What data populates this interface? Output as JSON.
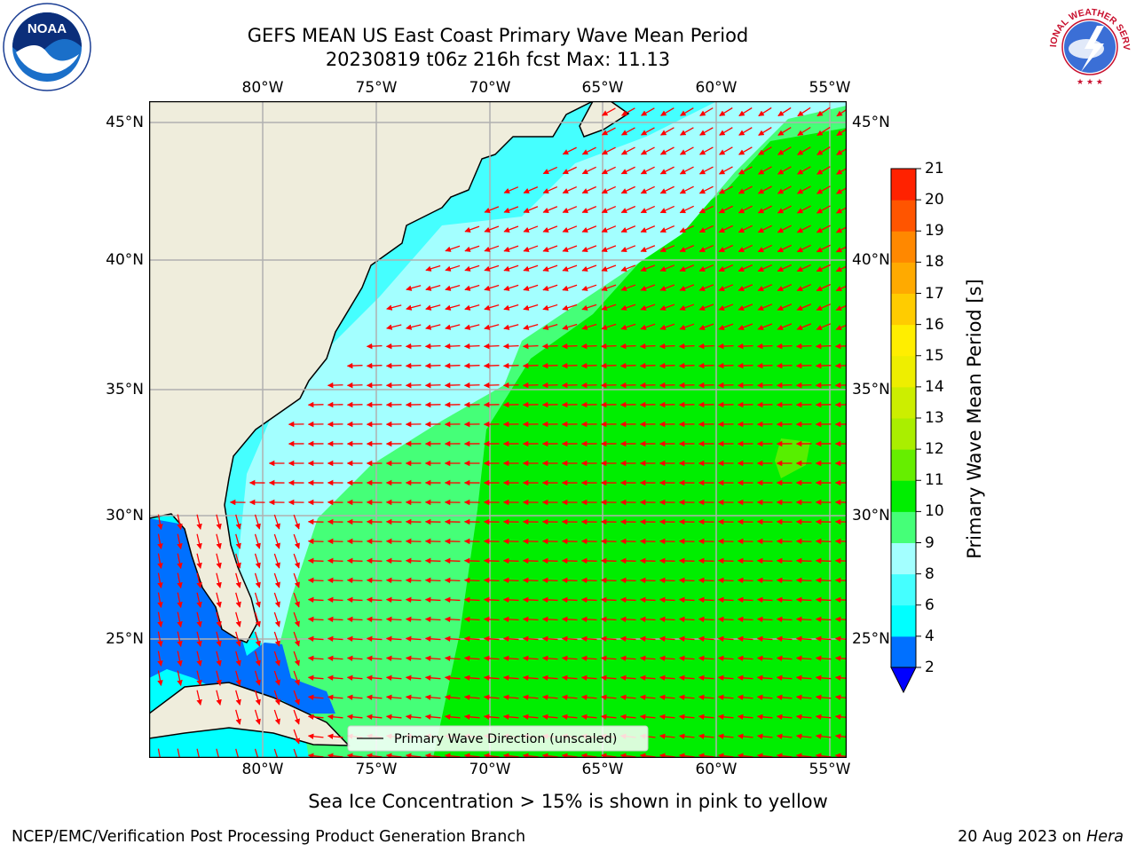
{
  "figure": {
    "title_line1": "GEFS MEAN US East Coast Primary Wave Mean Period",
    "title_line2": "20230819 t06z 216h fcst   Max: 11.13",
    "footnote": "Sea Ice Concentration > 15% is shown in pink to yellow",
    "footer_left": "NCEP/EMC/Verification Post Processing Product Generation Branch",
    "footer_date": "20 Aug 2023 on ",
    "footer_machine": "Hera",
    "noaa_logo_text": "NOAA",
    "nws_logo_text": "NATIONAL WEATHER SERVICE"
  },
  "map": {
    "projection": "Mercator",
    "lon_range": [
      -85,
      -54.2
    ],
    "lat_range": [
      20.5,
      46
    ],
    "lon_ticks": [
      -80,
      -75,
      -70,
      -65,
      -60,
      -55
    ],
    "lon_tick_labels": [
      "80°W",
      "75°W",
      "70°W",
      "65°W",
      "60°W",
      "55°W"
    ],
    "lat_ticks": [
      25,
      30,
      35,
      40,
      45
    ],
    "lat_tick_labels": [
      "25°N",
      "30°N",
      "35°N",
      "40°N",
      "45°N"
    ],
    "gridlines": true,
    "land_color": "#efeddc",
    "coastline_color": "#000000",
    "arrow_color": "#ff0000",
    "legend": {
      "label": "Primary Wave Direction (unscaled)",
      "position": "bottom-center"
    },
    "field_regions": [
      {
        "region": "Gulf of Mexico",
        "period_class": "4-6 s"
      },
      {
        "region": "Coastal shelf Florida to Nova Scotia",
        "period_class": "6-9 s"
      },
      {
        "region": "Sargasso Sea / central North Atlantic",
        "period_class": "9-10 s"
      },
      {
        "region": "Open Atlantic south-east of 38°N",
        "period_class": "10-11 s"
      },
      {
        "region": "Small patch near 32°N 57°W",
        "period_class": "11-12 s"
      }
    ]
  },
  "colorbar": {
    "label": "Primary Wave Mean Period [s]",
    "levels": [
      2,
      4,
      6,
      8,
      9,
      10,
      11,
      12,
      13,
      14,
      15,
      16,
      17,
      18,
      19,
      20,
      21
    ],
    "tick_labels": [
      "2",
      "4",
      "6",
      "8",
      "9",
      "10",
      "11",
      "12",
      "13",
      "14",
      "15",
      "16",
      "17",
      "18",
      "19",
      "20",
      "21"
    ],
    "colors": [
      "#0070ff",
      "#00ffff",
      "#45ffff",
      "#a3ffff",
      "#45ff78",
      "#00ee00",
      "#66ee00",
      "#aaee00",
      "#ccee00",
      "#eeee00",
      "#ffee00",
      "#ffcc00",
      "#ffaa00",
      "#ff8800",
      "#ff5500",
      "#ff2200"
    ],
    "extend_under_color": "#0000ff"
  }
}
